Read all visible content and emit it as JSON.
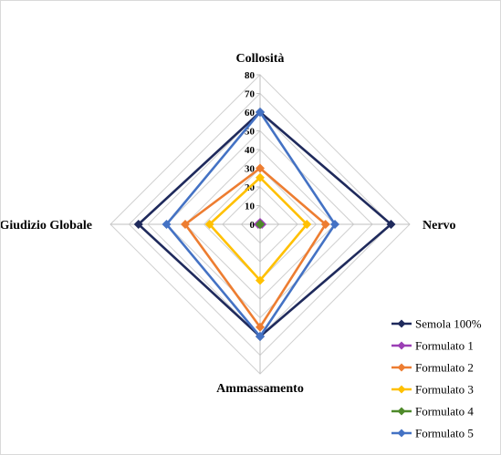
{
  "chart_data": {
    "type": "radar",
    "title": "",
    "axes": [
      "Collosità",
      "Nervo",
      "Ammassamento",
      "Giudizio Globale"
    ],
    "rlim": [
      0,
      80
    ],
    "ticks": [
      0,
      10,
      20,
      30,
      40,
      50,
      60,
      70,
      80
    ],
    "grid": true,
    "legend_position": "bottom-right",
    "series": [
      {
        "name": "Semola 100%",
        "color": "#1f2a5c",
        "values": [
          60,
          70,
          60,
          65
        ]
      },
      {
        "name": "Formulato 1",
        "color": "#9b3fb5",
        "values": [
          1,
          1,
          0,
          1
        ]
      },
      {
        "name": "Formulato 2",
        "color": "#ed7d31",
        "values": [
          30,
          35,
          55,
          40
        ]
      },
      {
        "name": "Formulato 3",
        "color": "#ffc000",
        "values": [
          25,
          25,
          30,
          27
        ]
      },
      {
        "name": "Formulato 4",
        "color": "#4e8a2a",
        "values": [
          0,
          0,
          0,
          0
        ]
      },
      {
        "name": "Formulato 5",
        "color": "#4472c4",
        "values": [
          60,
          40,
          60,
          50
        ]
      }
    ]
  }
}
